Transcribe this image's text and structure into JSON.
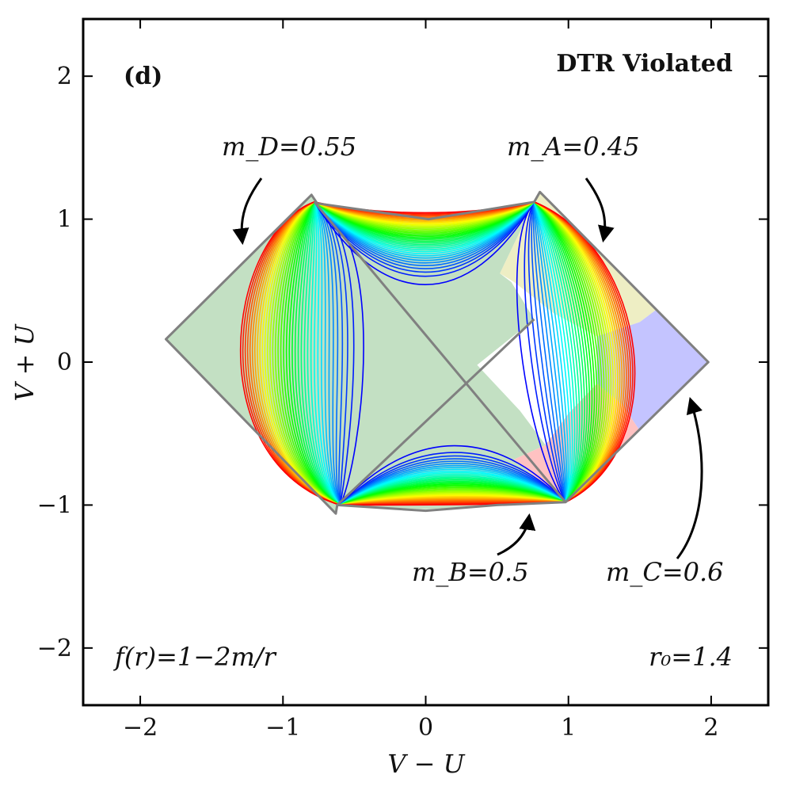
{
  "chart_data": {
    "type": "line",
    "panel_label": "(d)",
    "title": "DTR Violated",
    "xlabel": "V − U",
    "ylabel": "V + U",
    "xlim": [
      -2.4,
      2.4
    ],
    "ylim": [
      -2.4,
      2.4
    ],
    "xticks": [
      -2,
      -1,
      0,
      1,
      2
    ],
    "yticks": [
      -2,
      -1,
      0,
      1,
      2
    ],
    "xtick_labels": [
      "−2",
      "−1",
      "0",
      "1",
      "2"
    ],
    "ytick_labels": [
      "−2",
      "−1",
      "0",
      "1",
      "2"
    ],
    "formula": "f(r)=1−2m/r",
    "r0_label": "r₀=1.4",
    "masses": {
      "mD": {
        "label": "m_D=0.55",
        "value": 0.55
      },
      "mA": {
        "label": "m_A=0.45",
        "value": 0.45
      },
      "mB": {
        "label": "m_B=0.5",
        "value": 0.5
      },
      "mC": {
        "label": "m_C=0.6",
        "value": 0.6
      }
    },
    "boundary": {
      "outer_vertices": [
        [
          -1.82,
          0.16
        ],
        [
          -0.8,
          1.17
        ],
        [
          0.8,
          1.19
        ],
        [
          1.98,
          0.0
        ],
        [
          0.98,
          -0.98
        ],
        [
          -0.63,
          -1.06
        ]
      ],
      "top_edge_peak": [
        0.02,
        1.0
      ],
      "bottom_edge_dip": [
        0.0,
        -1.04
      ],
      "inner_diagonals": [
        [
          [
            -0.78,
            1.12
          ],
          [
            0.98,
            -0.98
          ]
        ],
        [
          [
            -0.62,
            -1.0
          ],
          [
            0.76,
            0.3
          ]
        ]
      ]
    },
    "regions": [
      {
        "name": "region-main",
        "color": "#c3e0c3"
      },
      {
        "name": "region-A",
        "color": "#eeeec4"
      },
      {
        "name": "region-B",
        "color": "#ffc2c2"
      },
      {
        "name": "region-C",
        "color": "#c4c4ff"
      }
    ],
    "contour_family": "Penrose-diagram r=const curves, colored rainbow from blue (interior) to red (boundary)",
    "n_contours": 38,
    "colors": {
      "edge": "#808080",
      "frame": "#000000"
    }
  }
}
